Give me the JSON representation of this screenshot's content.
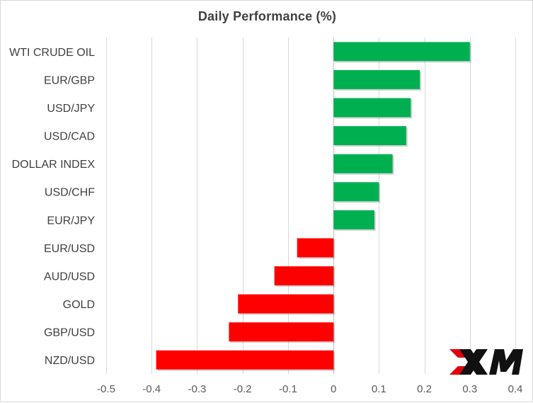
{
  "chart_data": {
    "type": "bar",
    "orientation": "horizontal",
    "title": "Daily Performance  (%)",
    "categories": [
      "WTI CRUDE OIL",
      "EUR/GBP",
      "USD/JPY",
      "USD/CAD",
      "DOLLAR INDEX",
      "USD/CHF",
      "EUR/JPY",
      "EUR/USD",
      "AUD/USD",
      "GOLD",
      "GBP/USD",
      "NZD/USD"
    ],
    "values": [
      0.3,
      0.19,
      0.17,
      0.16,
      0.13,
      0.1,
      0.09,
      -0.08,
      -0.13,
      -0.21,
      -0.23,
      -0.39
    ],
    "xlim": [
      -0.5,
      0.4
    ],
    "xticks": [
      -0.5,
      -0.4,
      -0.3,
      -0.2,
      -0.1,
      0,
      0.1,
      0.2,
      0.3,
      0.4
    ],
    "xtick_labels": [
      "-0.5",
      "-0.4",
      "-0.3",
      "-0.2",
      "-0.1",
      "0",
      "0.1",
      "0.2",
      "0.3",
      "0.4"
    ],
    "xlabel": "",
    "ylabel": "",
    "grid": "vertical",
    "legend": "none",
    "colors": {
      "positive": "#00b050",
      "negative": "#ff0000",
      "grid": "#d9d9d9",
      "text": "#404040"
    }
  },
  "logo": {
    "text": "XM",
    "colors": [
      "#000000",
      "#e3000f"
    ]
  }
}
